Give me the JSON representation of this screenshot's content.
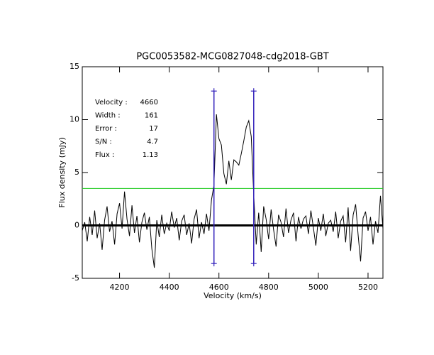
{
  "chart_data": {
    "type": "line",
    "title": "PGC0053582-MCG0827048-cdg2018-GBT",
    "x_label": "Velocity (km/s)",
    "y_label": "Flux density (mJy)",
    "xlim": [
      4050,
      5260
    ],
    "ylim": [
      -5,
      15
    ],
    "xticks": [
      4200,
      4400,
      4600,
      4800,
      5000,
      5200
    ],
    "yticks": [
      -5,
      0,
      5,
      10,
      15
    ],
    "zero_line": 0,
    "threshold": {
      "value": 3.5,
      "color": "#22cc22"
    },
    "markers": {
      "color": "#3322bb",
      "lines": [
        {
          "x": 4580,
          "y0": -3.6,
          "y1": 12.7
        },
        {
          "x": 4740,
          "y0": -3.6,
          "y1": 12.7
        }
      ]
    },
    "info": {
      "color": "#3322bb",
      "labels": [
        "Velocity :",
        "Width :",
        "Error :",
        "S/N :",
        "Flux :"
      ],
      "values": [
        4660,
        161,
        17,
        4.7,
        1.13
      ]
    },
    "series": [
      {
        "name": "spectrum",
        "color": "#000000",
        "x": [
          4050,
          4060,
          4070,
          4080,
          4090,
          4100,
          4110,
          4120,
          4130,
          4140,
          4150,
          4160,
          4170,
          4180,
          4190,
          4200,
          4210,
          4220,
          4230,
          4240,
          4250,
          4260,
          4270,
          4280,
          4290,
          4300,
          4310,
          4320,
          4330,
          4340,
          4350,
          4360,
          4370,
          4380,
          4390,
          4400,
          4410,
          4420,
          4430,
          4440,
          4450,
          4460,
          4470,
          4480,
          4490,
          4500,
          4510,
          4520,
          4530,
          4540,
          4550,
          4560,
          4570,
          4580,
          4590,
          4600,
          4610,
          4620,
          4630,
          4640,
          4650,
          4660,
          4670,
          4680,
          4690,
          4700,
          4710,
          4720,
          4730,
          4740,
          4750,
          4760,
          4770,
          4780,
          4790,
          4800,
          4810,
          4820,
          4830,
          4840,
          4850,
          4860,
          4870,
          4880,
          4890,
          4900,
          4910,
          4920,
          4930,
          4940,
          4950,
          4960,
          4970,
          4980,
          4990,
          5000,
          5010,
          5020,
          5030,
          5040,
          5050,
          5060,
          5070,
          5080,
          5090,
          5100,
          5110,
          5120,
          5130,
          5140,
          5150,
          5160,
          5170,
          5180,
          5190,
          5200,
          5210,
          5220,
          5230,
          5240,
          5250,
          5260
        ],
        "values": [
          -0.5,
          0.3,
          -1.5,
          0.8,
          -0.9,
          1.4,
          -1.2,
          0.2,
          -2.3,
          0.5,
          1.8,
          -0.6,
          0.4,
          -1.8,
          1.1,
          2.1,
          -0.3,
          3.2,
          0.6,
          -1.0,
          1.9,
          -0.7,
          0.9,
          -1.6,
          0.3,
          1.2,
          -0.4,
          0.8,
          -2.2,
          -4.0,
          0.5,
          -1.1,
          1.0,
          -0.8,
          0.2,
          -0.5,
          1.3,
          -0.2,
          0.7,
          -1.4,
          0.4,
          1.0,
          -0.9,
          0.2,
          -1.7,
          0.6,
          1.5,
          -1.2,
          0.3,
          -0.8,
          1.1,
          -0.5,
          2.4,
          3.8,
          10.5,
          8.2,
          7.6,
          4.9,
          3.9,
          6.1,
          4.3,
          6.2,
          6.0,
          5.7,
          6.8,
          8.0,
          9.3,
          9.9,
          8.4,
          2.9,
          -1.8,
          1.2,
          -2.5,
          1.8,
          0.6,
          -1.3,
          1.5,
          -0.4,
          -2.0,
          1.0,
          0.3,
          -1.1,
          1.6,
          -0.7,
          0.5,
          1.2,
          -1.5,
          0.8,
          -0.3,
          0.6,
          0.9,
          -0.8,
          1.4,
          -0.2,
          -1.9,
          0.7,
          -0.5,
          1.1,
          -1.0,
          0.2,
          0.5,
          -0.6,
          1.3,
          -1.2,
          0.4,
          0.9,
          -1.6,
          1.7,
          -2.4,
          1.0,
          2.0,
          -0.9,
          -3.4,
          0.7,
          1.3,
          -0.5,
          0.8,
          -1.8,
          0.4,
          -0.7,
          2.8,
          -0.3
        ]
      }
    ]
  }
}
